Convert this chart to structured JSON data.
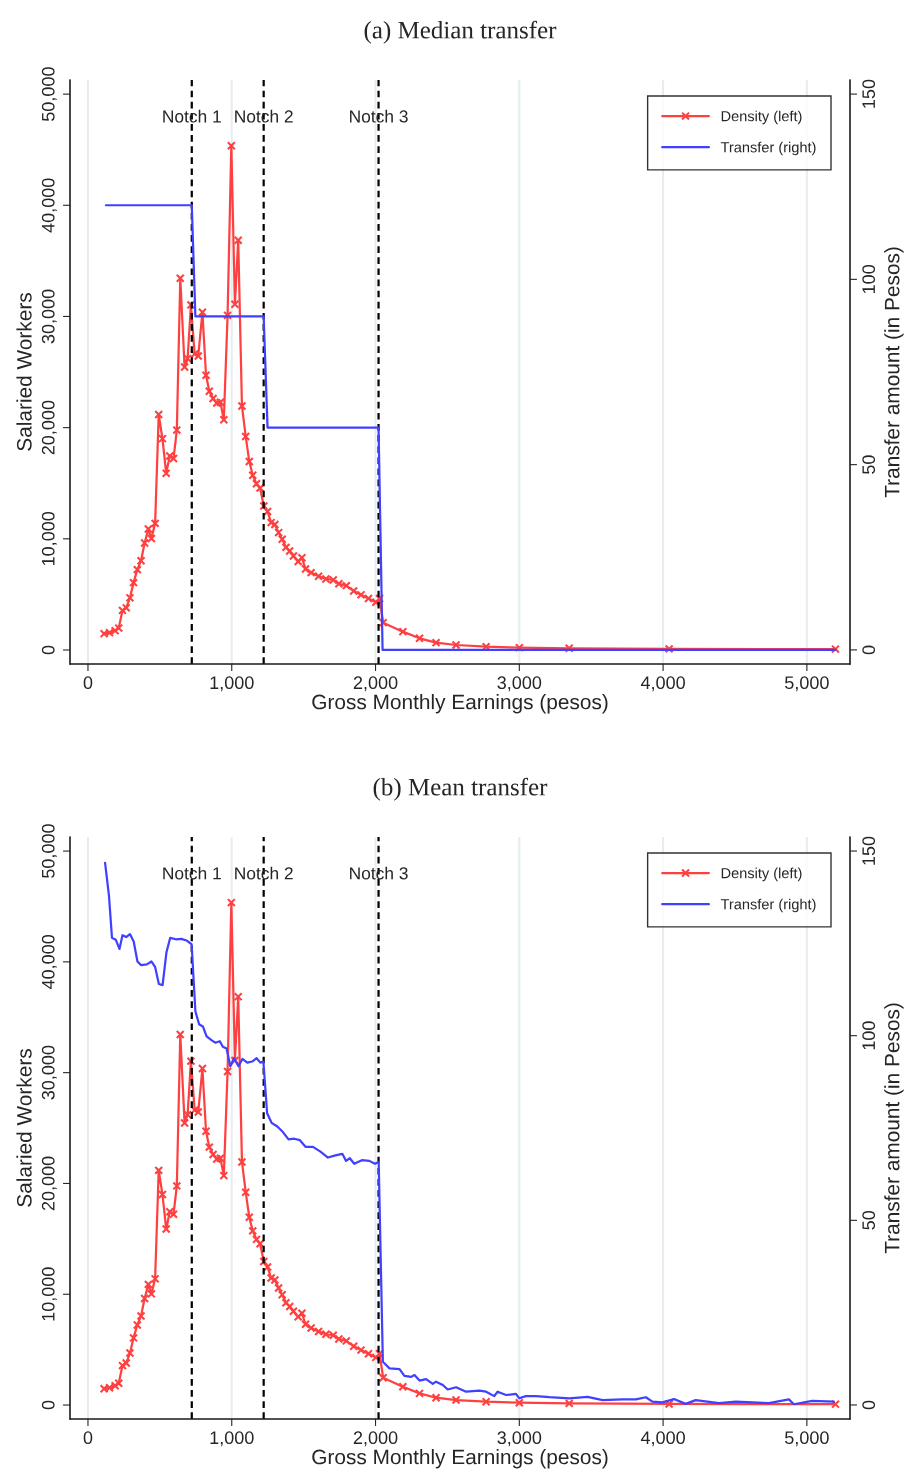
{
  "chart_data": [
    {
      "type": "line",
      "title": "(a) Median transfer",
      "xlabel": "Gross Monthly Earnings (pesos)",
      "ylabel": "Salaried Workers",
      "y2label": "Transfer amount (in Pesos)",
      "xlim": [
        -125,
        5300
      ],
      "xticks": [
        0,
        {
          "value": 1000,
          "label": "1,000"
        },
        {
          "value": 2000,
          "label": "2,000"
        },
        {
          "value": 3000,
          "label": "3,000"
        },
        {
          "value": 4000,
          "label": "4,000"
        },
        {
          "value": 5000,
          "label": "5,000"
        }
      ],
      "ylim": [
        -1260,
        51270
      ],
      "yticks": [
        0,
        {
          "value": 10000,
          "label": "10,000"
        },
        {
          "value": 20000,
          "label": "20,000"
        },
        {
          "value": 30000,
          "label": "30,000"
        },
        {
          "value": 40000,
          "label": "40,000"
        },
        {
          "value": 50000,
          "label": "50,000"
        }
      ],
      "y2lim": [
        -3.8,
        153.8
      ],
      "y2ticks": [
        0,
        50,
        100,
        150
      ],
      "grid": "x",
      "legend": "top right",
      "series": [
        {
          "name": "Density (left)",
          "color": "#ff4040",
          "marker": "cross",
          "x": [
            112,
            150,
            189,
            214,
            240,
            266,
            292,
            317,
            343,
            369,
            394,
            420,
            441,
            467,
            492,
            518,
            544,
            569,
            595,
            618,
            642,
            672,
            693,
            716,
            742,
            767,
            796,
            821,
            844,
            870,
            896,
            921,
            945,
            971,
            997,
            1022,
            1045,
            1071,
            1097,
            1122,
            1146,
            1172,
            1197,
            1223,
            1249,
            1274,
            1300,
            1326,
            1351,
            1377,
            1403,
            1429,
            1462,
            1488,
            1513,
            1552,
            1604,
            1655,
            1706,
            1745,
            1797,
            1848,
            1899,
            1951,
            2002,
            2028,
            2053,
            2190,
            2306,
            2421,
            2560,
            2769,
            3000,
            3347,
            4042,
            5199
          ],
          "values": [
            1470,
            1560,
            1740,
            1970,
            3560,
            3790,
            4690,
            6060,
            7230,
            8030,
            9620,
            10890,
            10030,
            11390,
            21180,
            19010,
            15890,
            17450,
            17220,
            19780,
            33440,
            25450,
            26210,
            31040,
            26620,
            26450,
            30380,
            24710,
            23280,
            22620,
            22210,
            22280,
            20710,
            30100,
            45350,
            31100,
            36860,
            21940,
            19210,
            16950,
            15720,
            14950,
            14560,
            12960,
            12460,
            11460,
            11290,
            10560,
            9960,
            9230,
            8900,
            8460,
            7960,
            8290,
            7290,
            6960,
            6630,
            6390,
            6300,
            5960,
            5790,
            5300,
            4960,
            4630,
            4300,
            4630,
            2460,
            1650,
            1050,
            660,
            450,
            300,
            210,
            150,
            100,
            80
          ]
        },
        {
          "name": "Transfer (right)",
          "color": "#4040ff",
          "marker": "none",
          "axis": "y2",
          "x": [
            125,
            722,
            747,
            1222,
            1249,
            2021,
            2049,
            5199
          ],
          "values": [
            120,
            120,
            90,
            90,
            60,
            60,
            0,
            0
          ]
        }
      ],
      "ref_lines": [
        {
          "axis": "x",
          "value": 722,
          "label": "Notch 1",
          "color": "#000000",
          "line_style": "dashed"
        },
        {
          "axis": "x",
          "value": 1222,
          "label": "Notch 2",
          "color": "#000000",
          "line_style": "dashed"
        },
        {
          "axis": "x",
          "value": 2021,
          "label": "Notch 3",
          "color": "#000000",
          "line_style": "dashed"
        }
      ]
    },
    {
      "type": "line",
      "title": "(b) Mean transfer",
      "xlabel": "Gross Monthly Earnings (pesos)",
      "ylabel": "Salaried Workers",
      "y2label": "Transfer amount (in Pesos)",
      "xlim": [
        -125,
        5300
      ],
      "xticks": [
        0,
        {
          "value": 1000,
          "label": "1,000"
        },
        {
          "value": 2000,
          "label": "2,000"
        },
        {
          "value": 3000,
          "label": "3,000"
        },
        {
          "value": 4000,
          "label": "4,000"
        },
        {
          "value": 5000,
          "label": "5,000"
        }
      ],
      "ylim": [
        -1260,
        51270
      ],
      "yticks": [
        0,
        {
          "value": 10000,
          "label": "10,000"
        },
        {
          "value": 20000,
          "label": "20,000"
        },
        {
          "value": 30000,
          "label": "30,000"
        },
        {
          "value": 40000,
          "label": "40,000"
        },
        {
          "value": 50000,
          "label": "50,000"
        }
      ],
      "y2lim": [
        -3.8,
        153.8
      ],
      "y2ticks": [
        0,
        50,
        100,
        150
      ],
      "grid": "x",
      "legend": "top right",
      "series": [
        {
          "name": "Density (left)",
          "color": "#ff4040",
          "marker": "cross",
          "x": [
            112,
            150,
            189,
            214,
            240,
            266,
            292,
            317,
            343,
            369,
            394,
            420,
            441,
            467,
            492,
            518,
            544,
            569,
            595,
            618,
            642,
            672,
            693,
            716,
            742,
            767,
            796,
            821,
            844,
            870,
            896,
            921,
            945,
            971,
            997,
            1022,
            1045,
            1071,
            1097,
            1122,
            1146,
            1172,
            1197,
            1223,
            1249,
            1274,
            1300,
            1326,
            1351,
            1377,
            1403,
            1429,
            1462,
            1488,
            1513,
            1552,
            1604,
            1655,
            1706,
            1745,
            1797,
            1848,
            1899,
            1951,
            2002,
            2028,
            2053,
            2190,
            2306,
            2421,
            2560,
            2769,
            3000,
            3347,
            4042,
            5199
          ],
          "values": [
            1470,
            1560,
            1740,
            1970,
            3560,
            3790,
            4690,
            6060,
            7230,
            8030,
            9620,
            10890,
            10030,
            11390,
            21180,
            19010,
            15890,
            17450,
            17220,
            19780,
            33440,
            25450,
            26210,
            31040,
            26620,
            26450,
            30380,
            24710,
            23280,
            22620,
            22210,
            22280,
            20710,
            30100,
            45350,
            31100,
            36860,
            21940,
            19210,
            16950,
            15720,
            14950,
            14560,
            12960,
            12460,
            11460,
            11290,
            10560,
            9960,
            9230,
            8900,
            8460,
            7960,
            8290,
            7290,
            6960,
            6630,
            6390,
            6300,
            5960,
            5790,
            5300,
            4960,
            4630,
            4300,
            4630,
            2460,
            1650,
            1050,
            660,
            450,
            300,
            210,
            150,
            100,
            80
          ]
        },
        {
          "name": "Transfer (right)",
          "color": "#4040ff",
          "marker": "none",
          "axis": "y2",
          "x": [
            119,
            146,
            167,
            193,
            219,
            240,
            266,
            292,
            318,
            344,
            370,
            410,
            441,
            467,
            493,
            519,
            546,
            572,
            611,
            650,
            690,
            721,
            747,
            773,
            799,
            825,
            859,
            885,
            917,
            938,
            964,
            990,
            1016,
            1047,
            1074,
            1108,
            1142,
            1173,
            1199,
            1220,
            1246,
            1277,
            1317,
            1356,
            1395,
            1434,
            1474,
            1513,
            1565,
            1617,
            1669,
            1721,
            1769,
            1795,
            1821,
            1852,
            1905,
            1957,
            1996,
            2022,
            2051,
            2097,
            2167,
            2201,
            2248,
            2271,
            2306,
            2352,
            2398,
            2421,
            2468,
            2502,
            2560,
            2630,
            2722,
            2769,
            2826,
            2849,
            2908,
            2977,
            3000,
            3046,
            3116,
            3208,
            3347,
            3475,
            3579,
            3718,
            3810,
            3880,
            3926,
            3995,
            4076,
            4157,
            4227,
            4389,
            4505,
            4736,
            4875,
            4910,
            5037,
            5188
          ],
          "values": [
            146.8,
            137.9,
            126.5,
            126.0,
            123.5,
            127.2,
            126.7,
            127.5,
            125.5,
            120.1,
            119.1,
            119.3,
            120.1,
            118.6,
            114.0,
            113.7,
            122.6,
            126.5,
            126.1,
            126.2,
            125.7,
            124.7,
            106.6,
            103.1,
            102.5,
            99.8,
            98.8,
            98.1,
            98.5,
            97.0,
            96.5,
            91.7,
            93.9,
            91.7,
            93.7,
            92.7,
            93.0,
            93.9,
            92.7,
            93.0,
            79.0,
            76.4,
            75.4,
            73.9,
            71.9,
            72.1,
            71.7,
            69.9,
            69.9,
            68.6,
            67.0,
            67.6,
            68.0,
            66.1,
            66.8,
            65.3,
            66.3,
            66.1,
            65.3,
            65.8,
            11.7,
            9.9,
            9.7,
            7.9,
            7.6,
            8.1,
            6.6,
            7.0,
            5.7,
            6.3,
            5.4,
            4.2,
            4.8,
            3.6,
            3.9,
            3.6,
            2.4,
            3.6,
            2.7,
            3.0,
            1.8,
            2.4,
            2.4,
            2.1,
            1.8,
            2.2,
            1.3,
            1.5,
            1.5,
            2.1,
            0.9,
            0.7,
            1.6,
            0.3,
            1.3,
            0.5,
            0.9,
            0.5,
            1.5,
            0.2,
            1.1,
            0.9
          ]
        }
      ],
      "ref_lines": [
        {
          "axis": "x",
          "value": 722,
          "label": "Notch 1",
          "color": "#000000",
          "line_style": "dashed"
        },
        {
          "axis": "x",
          "value": 1222,
          "label": "Notch 2",
          "color": "#000000",
          "line_style": "dashed"
        },
        {
          "axis": "x",
          "value": 2021,
          "label": "Notch 3",
          "color": "#000000",
          "line_style": "dashed"
        }
      ]
    }
  ]
}
